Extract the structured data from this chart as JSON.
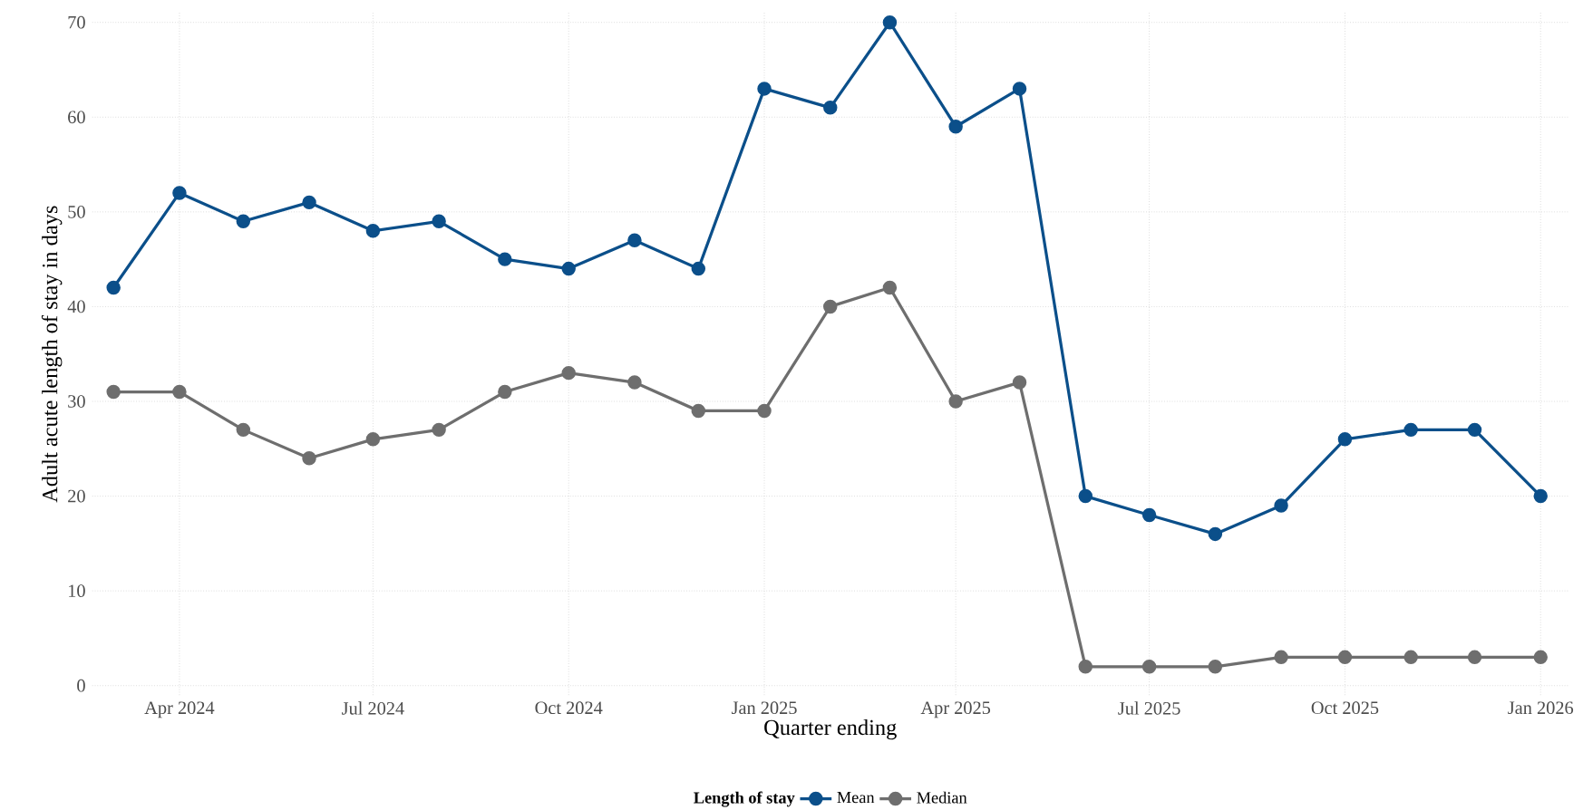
{
  "chart_data": {
    "type": "line",
    "xlabel": "Quarter ending",
    "ylabel": "Adult acute length of stay in days",
    "legend_title": "Length of stay",
    "x": [
      "2024-03",
      "2024-04",
      "2024-05",
      "2024-06",
      "2024-07",
      "2024-08",
      "2024-09",
      "2024-10",
      "2024-11",
      "2024-12",
      "2025-01",
      "2025-02",
      "2025-03",
      "2025-04",
      "2025-05",
      "2025-06",
      "2025-07",
      "2025-08",
      "2025-09",
      "2025-10",
      "2025-11",
      "2025-12",
      "2026-01"
    ],
    "series": [
      {
        "name": "Mean",
        "color": "#0b4f8a",
        "values": [
          42,
          52,
          49,
          51,
          48,
          49,
          45,
          44,
          47,
          44,
          63,
          61,
          70,
          59,
          63,
          20,
          18,
          16,
          19,
          26,
          27,
          27,
          20
        ]
      },
      {
        "name": "Median",
        "color": "#6e6e6e",
        "values": [
          31,
          31,
          27,
          24,
          26,
          27,
          31,
          33,
          32,
          29,
          29,
          40,
          42,
          30,
          32,
          2,
          2,
          2,
          3,
          3,
          3,
          3,
          3
        ]
      }
    ],
    "xlim": [
      "2024-02-20",
      "2026-01-14"
    ],
    "ylim": [
      -1,
      71
    ],
    "xticks": [
      {
        "value": "2024-04",
        "label": "Apr 2024"
      },
      {
        "value": "2024-07",
        "label": "Jul 2024"
      },
      {
        "value": "2024-10",
        "label": "Oct 2024"
      },
      {
        "value": "2025-01",
        "label": "Jan 2025"
      },
      {
        "value": "2025-04",
        "label": "Apr 2025"
      },
      {
        "value": "2025-07",
        "label": "Jul 2025"
      },
      {
        "value": "2025-10",
        "label": "Oct 2025"
      },
      {
        "value": "2026-01",
        "label": "Jan 2026"
      }
    ],
    "yticks": [
      0,
      10,
      20,
      30,
      40,
      50,
      60,
      70
    ],
    "grid": true,
    "legend": "bottom",
    "marker": "circle",
    "line_style": "solid"
  }
}
